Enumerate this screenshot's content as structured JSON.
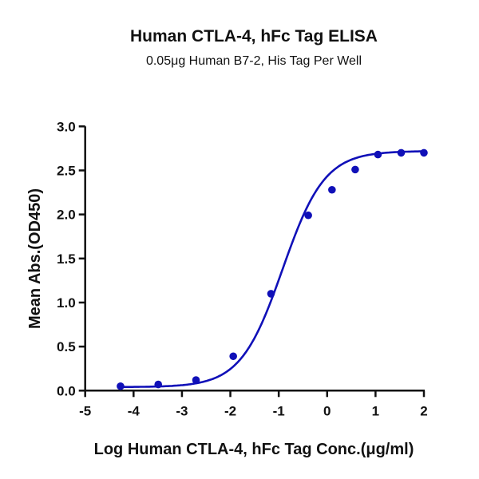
{
  "chart_data": {
    "type": "scatter",
    "title": "Human CTLA-4, hFc Tag ELISA",
    "subtitle": "0.05μg Human B7-2, His Tag Per Well",
    "xlabel": "Log Human CTLA-4, hFc Tag Conc.(μg/ml)",
    "ylabel": "Mean Abs.(OD450)",
    "xlim": [
      -5,
      2
    ],
    "ylim": [
      0,
      3.0
    ],
    "xticks": [
      "-5",
      "-4",
      "-3",
      "-2",
      "-1",
      "0",
      "1",
      "2"
    ],
    "yticks": [
      "0.0",
      "0.5",
      "1.0",
      "1.5",
      "2.0",
      "2.5",
      "3.0"
    ],
    "grid": false,
    "color": "#1010b8",
    "x": [
      -4.27,
      -3.49,
      -2.71,
      -1.94,
      -1.16,
      -0.39,
      0.1,
      0.58,
      1.05,
      1.53,
      2.0
    ],
    "y": [
      0.05,
      0.07,
      0.12,
      0.39,
      1.1,
      1.99,
      2.28,
      2.51,
      2.68,
      2.7,
      2.7
    ],
    "fit": {
      "model": "4PL",
      "bottom": 0.04,
      "top": 2.72,
      "logEC50": -0.92,
      "hill": 1.0
    }
  }
}
